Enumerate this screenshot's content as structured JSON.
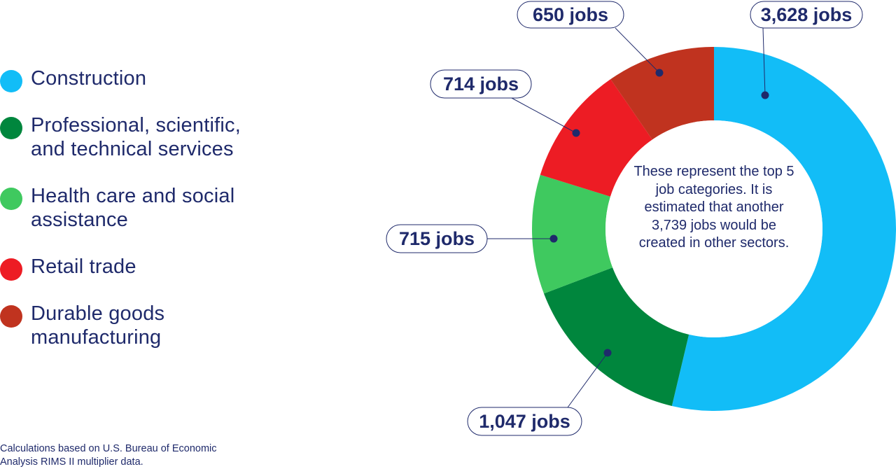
{
  "legend": {
    "items": [
      {
        "label": "Construction",
        "color": "#12bdf7"
      },
      {
        "label": "Professional, scientific,\nand technical services",
        "color": "#00863d"
      },
      {
        "label": "Health care and social\nassistance",
        "color": "#3fc95f"
      },
      {
        "label": "Retail trade",
        "color": "#ed1c24"
      },
      {
        "label": "Durable goods\nmanufacturing",
        "color": "#c0331f"
      }
    ]
  },
  "center_note": "These represent the top 5 job categories. It is estimated that another 3,739 jobs would be created in other sectors.",
  "footnote": "Calculations based on U.S. Bureau of Economic\nAnalysis RIMS II multiplier data.",
  "chart_data": {
    "type": "pie",
    "donut": true,
    "categories": [
      "Construction",
      "Professional, scientific, and technical services",
      "Health care and social assistance",
      "Retail trade",
      "Durable goods manufacturing"
    ],
    "values": [
      3628,
      1047,
      715,
      714,
      650
    ],
    "data_labels": [
      "3,628 jobs",
      "1,047 jobs",
      "715 jobs",
      "714 jobs",
      "650 jobs"
    ],
    "colors": [
      "#12bdf7",
      "#00863d",
      "#3fc95f",
      "#ed1c24",
      "#c0331f"
    ],
    "legend_position": "left"
  }
}
